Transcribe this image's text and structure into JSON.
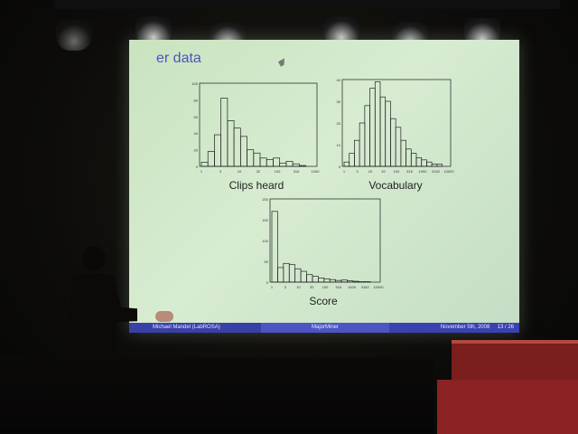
{
  "slide": {
    "title_partial": "er data",
    "charts": [
      {
        "caption": "Clips heard",
        "ticks_y": [
          "100",
          "80",
          "60",
          "40",
          "20",
          "0"
        ],
        "ticks_x": [
          "1",
          "3",
          "10",
          "32",
          "100",
          "316",
          "1000"
        ],
        "values": [
          5,
          18,
          38,
          82,
          55,
          46,
          36,
          20,
          16,
          10,
          8,
          10,
          4,
          6,
          3,
          1
        ]
      },
      {
        "caption": "Vocabulary",
        "ticks_y": [
          "40",
          "30",
          "20",
          "10",
          "0"
        ],
        "ticks_x": [
          "1",
          "3",
          "10",
          "32",
          "100",
          "316",
          "1000",
          "3162",
          "10000"
        ],
        "values": [
          2,
          6,
          12,
          20,
          28,
          36,
          39,
          32,
          30,
          22,
          18,
          12,
          8,
          6,
          4,
          3,
          2,
          1,
          1
        ]
      },
      {
        "caption": "Score",
        "ticks_y": [
          "200",
          "150",
          "100",
          "50",
          "0"
        ],
        "ticks_x": [
          "1",
          "3",
          "10",
          "32",
          "100",
          "316",
          "1000",
          "3162",
          "10000"
        ],
        "values": [
          170,
          35,
          45,
          42,
          32,
          26,
          18,
          14,
          10,
          8,
          6,
          4,
          5,
          3,
          2,
          1,
          1
        ]
      }
    ],
    "footer": {
      "author": "Michael Mandel  (LabROSA)",
      "talk": "MajorMiner",
      "date": "November 5th, 2008",
      "page": "13 / 26"
    }
  },
  "colors": {
    "screen": "#d0e8c8",
    "footer": "#3c44b0",
    "title": "#4a56b8"
  }
}
